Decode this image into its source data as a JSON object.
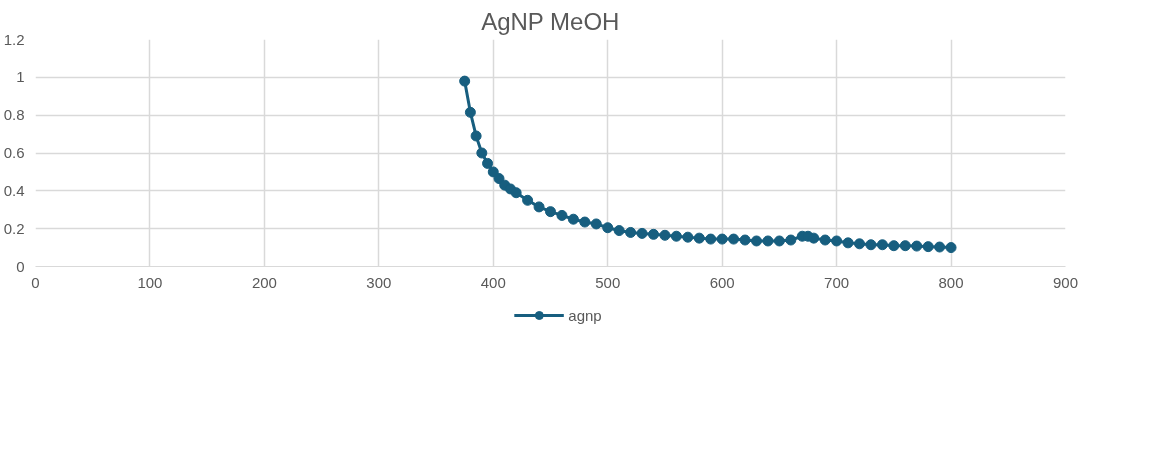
{
  "chart_data": {
    "type": "line",
    "title": "AgNP MeOH",
    "x": [
      375,
      380,
      385,
      390,
      395,
      400,
      405,
      410,
      415,
      420,
      430,
      440,
      450,
      460,
      470,
      480,
      490,
      500,
      510,
      520,
      530,
      540,
      550,
      560,
      570,
      580,
      590,
      600,
      610,
      620,
      630,
      640,
      650,
      660,
      670,
      675,
      680,
      690,
      700,
      710,
      720,
      730,
      740,
      750,
      760,
      770,
      780,
      790,
      800
    ],
    "series": [
      {
        "name": "agnp",
        "color": "#175e7f",
        "values": [
          0.98,
          0.815,
          0.69,
          0.6,
          0.545,
          0.5,
          0.465,
          0.43,
          0.41,
          0.39,
          0.35,
          0.315,
          0.29,
          0.27,
          0.25,
          0.235,
          0.225,
          0.205,
          0.19,
          0.18,
          0.175,
          0.17,
          0.165,
          0.16,
          0.155,
          0.15,
          0.145,
          0.145,
          0.145,
          0.14,
          0.135,
          0.135,
          0.135,
          0.14,
          0.16,
          0.16,
          0.15,
          0.14,
          0.135,
          0.125,
          0.12,
          0.115,
          0.115,
          0.11,
          0.11,
          0.108,
          0.105,
          0.103,
          0.1
        ]
      }
    ],
    "xlim": [
      0,
      900
    ],
    "xticks": [
      0,
      100,
      200,
      300,
      400,
      500,
      600,
      700,
      800,
      900
    ],
    "ylim": [
      0,
      1.2
    ],
    "yticks": [
      0,
      {
        "value": 0.2,
        "label": "0.2"
      },
      {
        "value": 0.4,
        "label": "0.4"
      },
      {
        "value": 0.6,
        "label": "0.6"
      },
      {
        "value": 0.8,
        "label": "0.8"
      },
      1,
      {
        "value": 1.2,
        "label": "1.2"
      }
    ],
    "grid": true,
    "legend": "bottom",
    "marker": "circle",
    "line_style": "solid"
  }
}
